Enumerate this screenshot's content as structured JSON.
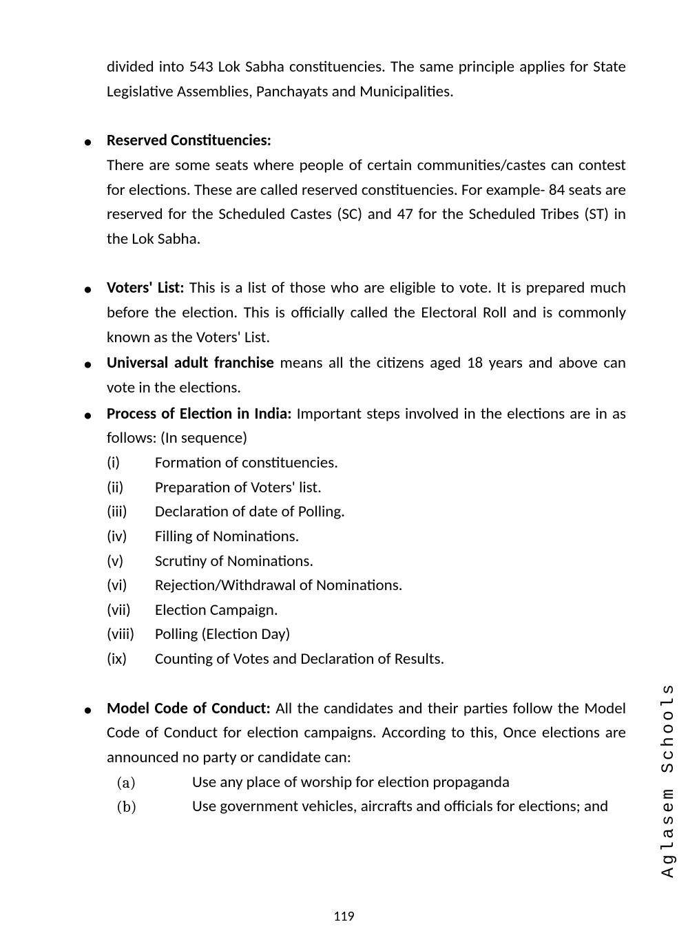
{
  "colors": {
    "background": "#ffffff",
    "text": "#000000"
  },
  "typography": {
    "body_font": "Calibri",
    "body_size_pt": 17,
    "line_height": 1.55,
    "watermark_font": "Courier New",
    "alpha_label_font": "Cambria"
  },
  "intro": "divided into 543 Lok Sabha constituencies. The same principle applies for State Legislative Assemblies, Panchayats and Municipalities.",
  "bullets": {
    "reserved": {
      "heading": "Reserved Constituencies:",
      "body": "There are some seats where people of certain communities/castes can contest for elections. These are called reserved constituencies. For example- 84 seats are reserved for  the Scheduled Castes (SC) and 47 for the Scheduled Tribes (ST) in the Lok Sabha."
    },
    "voters": {
      "heading": "Voters' List: ",
      "body": "This is a list of those who are eligible to vote. It is prepared much before the election. This is officially called the Electoral Roll and is commonly known as the Voters' List."
    },
    "franchise": {
      "heading": "Universal adult franchise ",
      "body": "means all the citizens aged 18 years and above can vote in the elections."
    },
    "process": {
      "heading": "Process of Election in India: ",
      "body": "Important steps involved in the elections are in as follows: (In sequence)",
      "steps": [
        {
          "num": "(i)",
          "txt": "Formation of constituencies."
        },
        {
          "num": "(ii)",
          "txt": "Preparation of Voters' list."
        },
        {
          "num": "(iii)",
          "txt": "Declaration of date of Polling."
        },
        {
          "num": "(iv)",
          "txt": "Filling of Nominations."
        },
        {
          "num": "(v)",
          "txt": "Scrutiny of Nominations."
        },
        {
          "num": "(vi)",
          "txt": "Rejection/Withdrawal of Nominations."
        },
        {
          "num": "(vii)",
          "txt": "Election Campaign."
        },
        {
          "num": "(viii)",
          "txt": "Polling (Election Day)"
        },
        {
          "num": "(ix)",
          "txt": "Counting of Votes and Declaration of Results."
        }
      ]
    },
    "mcc": {
      "heading": "Model Code of Conduct: ",
      "body": "All the candidates and their parties follow the Model Code of Conduct for election campaigns. According to this, Once elections are announced no party or candidate can:",
      "items": [
        {
          "num": "(a)",
          "txt": "Use any place of worship for election propaganda"
        },
        {
          "num": "(b)",
          "txt": "Use government vehicles, aircrafts and officials for elections; and"
        }
      ]
    }
  },
  "page_number": "119",
  "watermark": "Aglasem Schools",
  "bullet_char": "•"
}
